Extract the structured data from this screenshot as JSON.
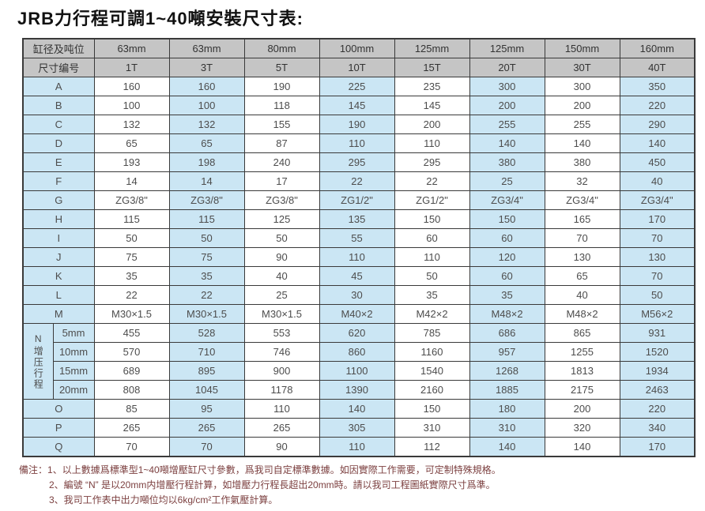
{
  "title": "JRB力行程可調1~40噸安裝尺寸表:",
  "table": {
    "header_rows": [
      {
        "label": "缸径及吨位",
        "values": [
          "63mm",
          "63mm",
          "80mm",
          "100mm",
          "125mm",
          "125mm",
          "150mm",
          "160mm"
        ]
      },
      {
        "label": "尺寸编号",
        "values": [
          "1T",
          "3T",
          "5T",
          "10T",
          "15T",
          "20T",
          "30T",
          "40T"
        ]
      }
    ],
    "rows": [
      {
        "label": "A",
        "values": [
          "160",
          "160",
          "190",
          "225",
          "235",
          "300",
          "300",
          "350"
        ]
      },
      {
        "label": "B",
        "values": [
          "100",
          "100",
          "118",
          "145",
          "145",
          "200",
          "200",
          "220"
        ]
      },
      {
        "label": "C",
        "values": [
          "132",
          "132",
          "155",
          "190",
          "200",
          "255",
          "255",
          "290"
        ]
      },
      {
        "label": "D",
        "values": [
          "65",
          "65",
          "87",
          "110",
          "110",
          "140",
          "140",
          "140"
        ]
      },
      {
        "label": "E",
        "values": [
          "193",
          "198",
          "240",
          "295",
          "295",
          "380",
          "380",
          "450"
        ]
      },
      {
        "label": "F",
        "values": [
          "14",
          "14",
          "17",
          "22",
          "22",
          "25",
          "32",
          "40"
        ]
      },
      {
        "label": "G",
        "values": [
          "ZG3/8\"",
          "ZG3/8\"",
          "ZG3/8\"",
          "ZG1/2\"",
          "ZG1/2\"",
          "ZG3/4\"",
          "ZG3/4\"",
          "ZG3/4\""
        ]
      },
      {
        "label": "H",
        "values": [
          "115",
          "115",
          "125",
          "135",
          "150",
          "150",
          "165",
          "170"
        ]
      },
      {
        "label": "I",
        "values": [
          "50",
          "50",
          "50",
          "55",
          "60",
          "60",
          "70",
          "70"
        ]
      },
      {
        "label": "J",
        "values": [
          "75",
          "75",
          "90",
          "110",
          "110",
          "120",
          "130",
          "130"
        ]
      },
      {
        "label": "K",
        "values": [
          "35",
          "35",
          "40",
          "45",
          "50",
          "60",
          "65",
          "70"
        ]
      },
      {
        "label": "L",
        "values": [
          "22",
          "22",
          "25",
          "30",
          "35",
          "35",
          "40",
          "50"
        ]
      },
      {
        "label": "M",
        "values": [
          "M30×1.5",
          "M30×1.5",
          "M30×1.5",
          "M40×2",
          "M42×2",
          "M48×2",
          "M48×2",
          "M56×2"
        ]
      }
    ],
    "n_block": {
      "group_label": "N增压行程",
      "rows": [
        {
          "label": "5mm",
          "values": [
            "455",
            "528",
            "553",
            "620",
            "785",
            "686",
            "865",
            "931"
          ]
        },
        {
          "label": "10mm",
          "values": [
            "570",
            "710",
            "746",
            "860",
            "1160",
            "957",
            "1255",
            "1520"
          ]
        },
        {
          "label": "15mm",
          "values": [
            "689",
            "895",
            "900",
            "1100",
            "1540",
            "1268",
            "1813",
            "1934"
          ]
        },
        {
          "label": "20mm",
          "values": [
            "808",
            "1045",
            "1178",
            "1390",
            "2160",
            "1885",
            "2175",
            "2463"
          ]
        }
      ]
    },
    "rows_after": [
      {
        "label": "O",
        "values": [
          "85",
          "95",
          "110",
          "140",
          "150",
          "180",
          "200",
          "220"
        ]
      },
      {
        "label": "P",
        "values": [
          "265",
          "265",
          "265",
          "305",
          "310",
          "310",
          "320",
          "340"
        ]
      },
      {
        "label": "Q",
        "values": [
          "70",
          "70",
          "90",
          "110",
          "112",
          "140",
          "140",
          "170"
        ]
      }
    ]
  },
  "notes": {
    "prefix": "備注：",
    "items": [
      "1、以上數據爲標準型1~40噸增壓缸尺寸參數，爲我司自定標準數據。如因實際工作需要，可定制特殊規格。",
      "2、編號 “N” 是以20mm内增壓行程計算，如增壓力行程長超出20mm時。請以我司工程圖紙實際尺寸爲準。",
      "3、我司工作表中出力噸位均以6kg/cm²工作氣壓計算。"
    ]
  },
  "colors": {
    "header_bg": "#c5c5c5",
    "blue_bg": "#cbe6f4",
    "white_bg": "#ffffff",
    "border": "#3a3a3a",
    "note_text": "#7c4040",
    "cell_text": "#4d4d4d"
  }
}
